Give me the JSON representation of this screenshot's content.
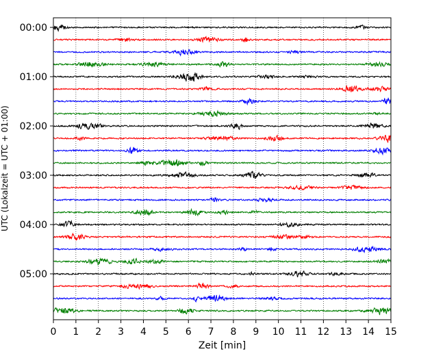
{
  "chart_data": {
    "type": "line",
    "title": "",
    "xlabel": "Zeit  [min]",
    "ylabel": "UTC (Lokalzeit = UTC + 01:00)",
    "xlim": [
      0,
      15
    ],
    "x_ticks": [
      "0",
      "1",
      "2",
      "3",
      "4",
      "5",
      "6",
      "7",
      "8",
      "9",
      "10",
      "11",
      "12",
      "13",
      "14",
      "15"
    ],
    "y_tick_labels": [
      "00:00",
      "01:00",
      "02:00",
      "03:00",
      "04:00",
      "05:00"
    ],
    "grid": "vertical dotted at each minute",
    "trace_count": 24,
    "trace_interval_minutes": 15,
    "trace_colors": [
      "#000000",
      "#ff0000",
      "#0000ff",
      "#007f00"
    ]
  }
}
